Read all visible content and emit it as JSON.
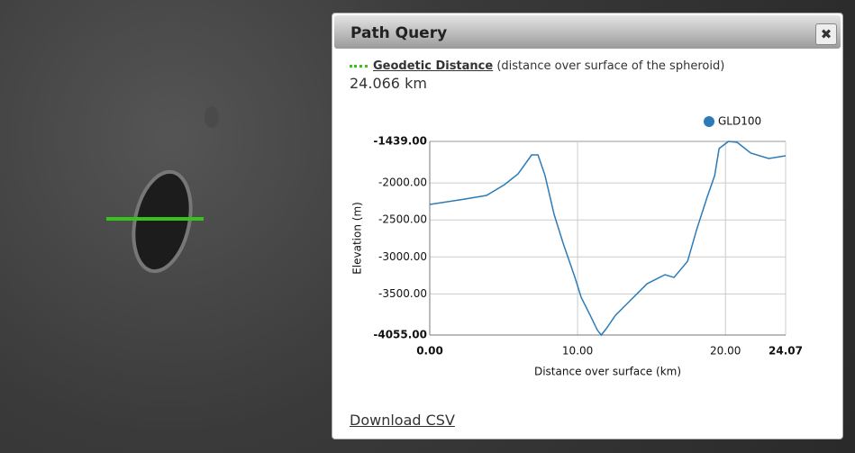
{
  "panel": {
    "title": "Path Query"
  },
  "measure": {
    "label": "Geodetic Distance",
    "description": "(distance over surface of the spheroid)",
    "value": "24.066 km"
  },
  "chart_data": {
    "type": "line",
    "x_label": "Distance over surface (km)",
    "y_label": "Elevation (m)",
    "series": [
      {
        "name": "GLD100",
        "color": "#2b7bb9",
        "x": [
          0,
          2.01,
          3.84,
          5.06,
          5.98,
          6.89,
          7.32,
          7.8,
          8.41,
          9.02,
          9.82,
          10.24,
          10.85,
          11.34,
          11.6,
          11.95,
          12.56,
          13.48,
          14.7,
          15.91,
          16.52,
          17.44,
          18.05,
          18.78,
          19.27,
          19.57,
          20.2,
          20.79,
          21.71,
          22.93,
          24.07
        ],
        "values": [
          -2291,
          -2230,
          -2169,
          -2023,
          -1877,
          -1622,
          -1622,
          -1902,
          -2425,
          -2814,
          -3277,
          -3545,
          -3788,
          -3990,
          -4055,
          -3967,
          -3788,
          -3605,
          -3362,
          -3240,
          -3277,
          -3058,
          -2632,
          -2181,
          -1902,
          -1536,
          -1439,
          -1451,
          -1597,
          -1670,
          -1634
        ]
      }
    ],
    "xlim": [
      0,
      24.07
    ],
    "ylim": [
      -4055,
      -1439
    ],
    "xticks": [
      {
        "value": 0,
        "label": "0.00"
      },
      {
        "value": 10,
        "label": "10.00"
      },
      {
        "value": 20,
        "label": "20.00"
      },
      {
        "value": 24.07,
        "label": "24.07"
      }
    ],
    "yticks": [
      {
        "value": -1439,
        "label": "-1439.00"
      },
      {
        "value": -2000,
        "label": "-2000.00"
      },
      {
        "value": -2500,
        "label": "-2500.00"
      },
      {
        "value": -3000,
        "label": "-3000.00"
      },
      {
        "value": -3500,
        "label": "-3500.00"
      },
      {
        "value": -4055,
        "label": "-4055.00"
      }
    ],
    "grid": true,
    "legend": "top-right"
  },
  "footer": {
    "link": "Download CSV"
  }
}
